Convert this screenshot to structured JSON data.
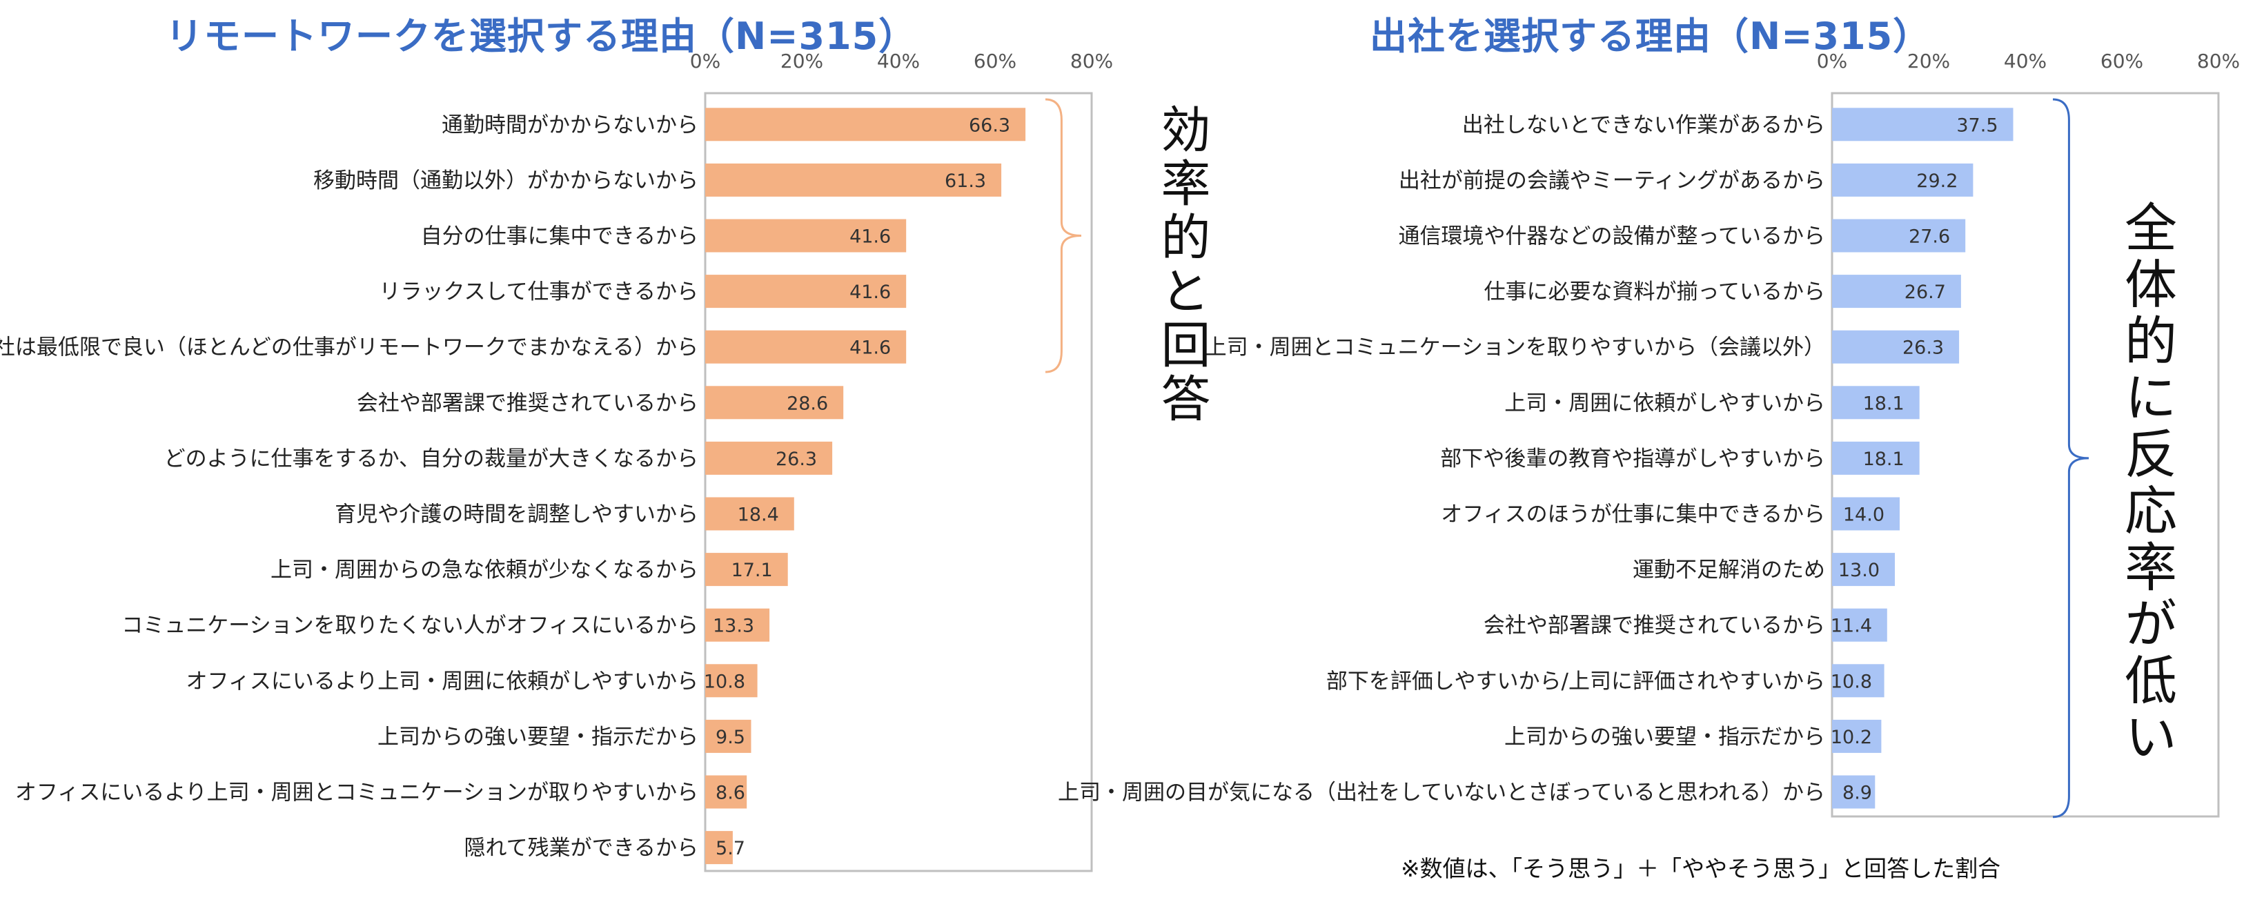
{
  "chart_data": [
    {
      "type": "bar",
      "orientation": "horizontal",
      "title": "リモートワークを選択する理由（N=315）",
      "xlim": [
        0,
        80
      ],
      "xticks": [
        "0%",
        "20%",
        "40%",
        "60%",
        "80%"
      ],
      "color": "#f4b183",
      "categories": [
        "通勤時間がかからないから",
        "移動時間（通勤以外）がかからないから",
        "自分の仕事に集中できるから",
        "リラックスして仕事ができるから",
        "出社は最低限で良い（ほとんどの仕事がリモートワークでまかなえる）から",
        "会社や部署課で推奨されているから",
        "どのように仕事をするか、自分の裁量が大きくなるから",
        "育児や介護の時間を調整しやすいから",
        "上司・周囲からの急な依頼が少なくなるから",
        "コミュニケーションを取りたくない人がオフィスにいるから",
        "オフィスにいるより上司・周囲に依頼がしやすいから",
        "上司からの強い要望・指示だから",
        "オフィスにいるより上司・周囲とコミュニケーションが取りやすいから",
        "隠れて残業ができるから"
      ],
      "values": [
        66.3,
        61.3,
        41.6,
        41.6,
        41.6,
        28.6,
        26.3,
        18.4,
        17.1,
        13.3,
        10.8,
        9.5,
        8.6,
        5.7
      ],
      "labels": [
        "66.3",
        "61.3",
        "41.6",
        "41.6",
        "41.6",
        "28.6",
        "26.3",
        "18.4",
        "17.1",
        "13.3",
        "10.8",
        "9.5",
        "8.6",
        "5.7"
      ],
      "annotation": "効率的と回答",
      "bracket_rows": [
        0,
        4
      ],
      "bracket_color": "#f4b183"
    },
    {
      "type": "bar",
      "orientation": "horizontal",
      "title": "出社を選択する理由（N=315）",
      "xlim": [
        0,
        80
      ],
      "xticks": [
        "0%",
        "20%",
        "40%",
        "60%",
        "80%"
      ],
      "color": "#a9c4f5",
      "categories": [
        "出社しないとできない作業があるから",
        "出社が前提の会議やミーティングがあるから",
        "通信環境や什器などの設備が整っているから",
        "仕事に必要な資料が揃っているから",
        "上司・周囲とコミュニケーションを取りやすいから（会議以外）",
        "上司・周囲に依頼がしやすいから",
        "部下や後輩の教育や指導がしやすいから",
        "オフィスのほうが仕事に集中できるから",
        "運動不足解消のため",
        "会社や部署課で推奨されているから",
        "部下を評価しやすいから/上司に評価されやすいから",
        "上司からの強い要望・指示だから",
        "上司・周囲の目が気になる（出社をしていないとさぼっていると思われる）から"
      ],
      "values": [
        37.5,
        29.2,
        27.6,
        26.7,
        26.3,
        18.1,
        18.1,
        14.0,
        13.0,
        11.4,
        10.8,
        10.2,
        8.9
      ],
      "labels": [
        "37.5",
        "29.2",
        "27.6",
        "26.7",
        "26.3",
        "18.1",
        "18.1",
        "14.0",
        "13.0",
        "11.4",
        "10.8",
        "10.2",
        "8.9"
      ],
      "annotation": "全体的に反応率が低い",
      "bracket_rows": [
        0,
        12
      ],
      "bracket_color": "#3a6cc4"
    }
  ],
  "footnote": "※数値は、「そう思う」＋「ややそう思う」と回答した割合"
}
